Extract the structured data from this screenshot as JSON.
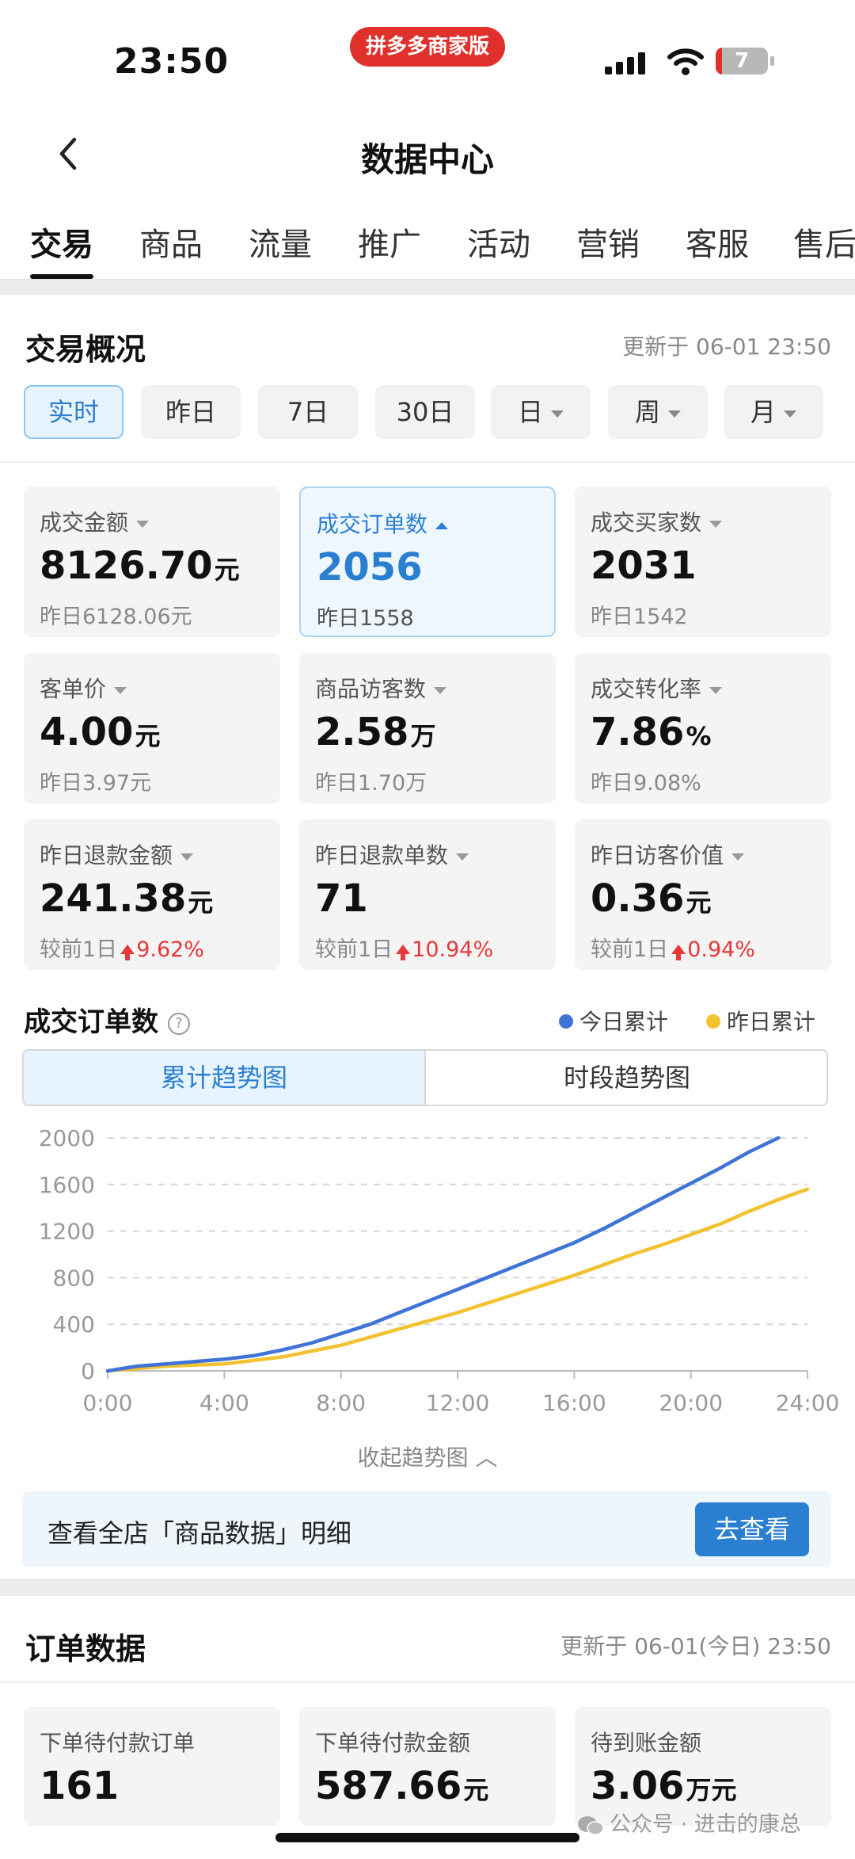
{
  "status_bar": {
    "time": "23:50",
    "app_badge": "拼多多商家版",
    "battery": "7"
  },
  "nav": {
    "title": "数据中心"
  },
  "tabs": [
    "交易",
    "商品",
    "流量",
    "推广",
    "活动",
    "营销",
    "客服",
    "售后"
  ],
  "overview": {
    "title": "交易概况",
    "updated": "更新于 06-01 23:50",
    "periods": [
      "实时",
      "昨日",
      "7日",
      "30日",
      "日",
      "周",
      "月"
    ],
    "metrics": [
      {
        "label": "成交金额",
        "value": "8126.70",
        "unit": "元",
        "sub": "昨日6128.06元",
        "active": false
      },
      {
        "label": "成交订单数",
        "value": "2056",
        "unit": "",
        "sub": "昨日1558",
        "active": true
      },
      {
        "label": "成交买家数",
        "value": "2031",
        "unit": "",
        "sub": "昨日1542",
        "active": false
      },
      {
        "label": "客单价",
        "value": "4.00",
        "unit": "元",
        "sub": "昨日3.97元",
        "active": false
      },
      {
        "label": "商品访客数",
        "value": "2.58",
        "unit": "万",
        "sub": "昨日1.70万",
        "active": false
      },
      {
        "label": "成交转化率",
        "value": "7.86",
        "unit": "%",
        "sub": "昨日9.08%",
        "active": false
      },
      {
        "label": "昨日退款金额",
        "value": "241.38",
        "unit": "元",
        "sub": "较前1日",
        "change": "9.62%",
        "active": false
      },
      {
        "label": "昨日退款单数",
        "value": "71",
        "unit": "",
        "sub": "较前1日",
        "change": "10.94%",
        "active": false
      },
      {
        "label": "昨日访客价值",
        "value": "0.36",
        "unit": "元",
        "sub": "较前1日",
        "change": "0.94%",
        "active": false
      }
    ]
  },
  "orders_chart_section": {
    "title": "成交订单数",
    "help_icon": "?",
    "legend_today": "今日累计",
    "legend_yesterday": "昨日累计",
    "toggle_left": "累计趋势图",
    "toggle_right": "时段趋势图",
    "collapse": "收起趋势图",
    "colors": {
      "today": "#3f73d8",
      "yesterday": "#f2c230"
    }
  },
  "chart_data": {
    "type": "line",
    "x_ticks": [
      "0:00",
      "4:00",
      "8:00",
      "12:00",
      "16:00",
      "20:00",
      "24:00"
    ],
    "y_ticks": [
      0,
      400,
      800,
      1200,
      1600,
      2000
    ],
    "ylim": [
      0,
      2000
    ],
    "xlim": [
      0,
      24
    ],
    "grid": true,
    "legend_position": "top-right",
    "series": [
      {
        "name": "今日累计",
        "color": "#3f73d8",
        "x": [
          0,
          1,
          2,
          3,
          4,
          5,
          6,
          7,
          8,
          9,
          10,
          11,
          12,
          13,
          14,
          15,
          16,
          17,
          18,
          19,
          20,
          21,
          22,
          23
        ],
        "values": [
          0,
          40,
          60,
          80,
          100,
          130,
          180,
          240,
          320,
          400,
          500,
          600,
          700,
          800,
          900,
          1000,
          1100,
          1220,
          1350,
          1480,
          1610,
          1740,
          1880,
          2000
        ]
      },
      {
        "name": "昨日累计",
        "color": "#f2c230",
        "x": [
          0,
          1,
          2,
          3,
          4,
          5,
          6,
          7,
          8,
          9,
          10,
          11,
          12,
          13,
          14,
          15,
          16,
          17,
          18,
          19,
          20,
          21,
          22,
          23,
          24
        ],
        "values": [
          0,
          20,
          40,
          50,
          60,
          90,
          120,
          170,
          220,
          290,
          360,
          430,
          500,
          580,
          660,
          740,
          820,
          910,
          1000,
          1080,
          1170,
          1260,
          1370,
          1470,
          1560
        ]
      }
    ]
  },
  "banner": {
    "text": "查看全店「商品数据」明细",
    "button": "去查看"
  },
  "order_data": {
    "title": "订单数据",
    "updated": "更新于 06-01(今日) 23:50",
    "metrics": [
      {
        "label": "下单待付款订单",
        "value": "161",
        "unit": ""
      },
      {
        "label": "下单待付款金额",
        "value": "587.66",
        "unit": "元"
      },
      {
        "label": "待到账金额",
        "value": "3.06",
        "unit": "万元"
      }
    ]
  },
  "watermark": "公众号 · 进击的康总"
}
